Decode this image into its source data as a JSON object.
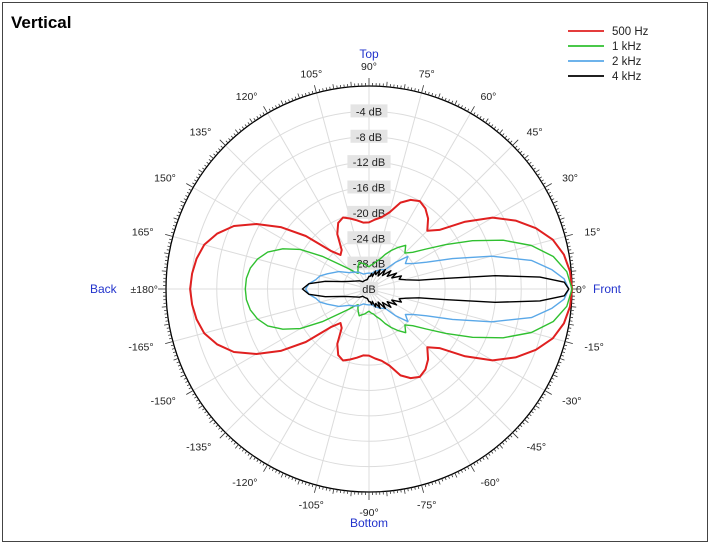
{
  "chart_data": {
    "type": "polar",
    "title": "Vertical",
    "r_unit": "dB",
    "r_range": [
      -32,
      0
    ],
    "r_labels": [
      "-4 dB",
      "-8 dB",
      "-12 dB",
      "-16 dB",
      "-20 dB",
      "-24 dB",
      "-28 dB",
      "dB"
    ],
    "direction_labels": {
      "top": "Top",
      "bottom": "Bottom",
      "back": "Back",
      "front": "Front"
    },
    "angle_labels": [
      {
        "deg": 90,
        "text": "90°"
      },
      {
        "deg": 75,
        "text": "75°"
      },
      {
        "deg": 60,
        "text": "60°"
      },
      {
        "deg": 45,
        "text": "45°"
      },
      {
        "deg": 30,
        "text": "30°"
      },
      {
        "deg": 15,
        "text": "15°"
      },
      {
        "deg": 0,
        "text": "0°"
      },
      {
        "deg": -15,
        "text": "-15°"
      },
      {
        "deg": -30,
        "text": "-30°"
      },
      {
        "deg": -45,
        "text": "-45°"
      },
      {
        "deg": -60,
        "text": "-60°"
      },
      {
        "deg": -75,
        "text": "-75°"
      },
      {
        "deg": -90,
        "text": "-90°"
      },
      {
        "deg": -105,
        "text": "-105°"
      },
      {
        "deg": -120,
        "text": "-120°"
      },
      {
        "deg": -135,
        "text": "-135°"
      },
      {
        "deg": -150,
        "text": "-150°"
      },
      {
        "deg": -165,
        "text": "-165°"
      },
      {
        "deg": 180,
        "text": "±180°"
      },
      {
        "deg": 165,
        "text": "165°"
      },
      {
        "deg": 150,
        "text": "150°"
      },
      {
        "deg": 135,
        "text": "135°"
      },
      {
        "deg": 120,
        "text": "120°"
      },
      {
        "deg": 105,
        "text": "105°"
      }
    ],
    "legend_position": "top-right",
    "grid": true,
    "series": [
      {
        "name": "500 Hz",
        "color": "#e02020",
        "angles": [
          0,
          5,
          10,
          15,
          20,
          25,
          30,
          35,
          40,
          45,
          50,
          55,
          60,
          65,
          70,
          75,
          80,
          85,
          90,
          95,
          100,
          105,
          110,
          115,
          120,
          125,
          130,
          135,
          140,
          145,
          150,
          155,
          160,
          165,
          170,
          175,
          180
        ],
        "values": [
          0,
          -0.2,
          -0.8,
          -2,
          -4,
          -6.5,
          -9.5,
          -13.5,
          -17.5,
          -19,
          -17.5,
          -16.5,
          -16,
          -16.5,
          -17.5,
          -19.5,
          -20.5,
          -21,
          -21.5,
          -21.5,
          -21,
          -20.5,
          -20,
          -20.5,
          -22,
          -24.5,
          -25,
          -23.5,
          -19,
          -15,
          -11.5,
          -8.5,
          -6.5,
          -5.1,
          -4.4,
          -4.0,
          -3.8
        ]
      },
      {
        "name": "1 kHz",
        "color": "#30c030",
        "angles": [
          0,
          5,
          10,
          15,
          20,
          25,
          30,
          35,
          40,
          45,
          50,
          55,
          60,
          65,
          70,
          75,
          80,
          85,
          90,
          95,
          100,
          105,
          110,
          115,
          120,
          125,
          130,
          135,
          140,
          145,
          150,
          155,
          160,
          165,
          170,
          175,
          180
        ],
        "values": [
          0,
          -0.7,
          -2.5,
          -5.5,
          -9.5,
          -14,
          -18,
          -21,
          -23,
          -24,
          -23,
          -24,
          -25,
          -26,
          -27,
          -27.5,
          -28,
          -28.2,
          -28.5,
          -28.3,
          -28,
          -27.8,
          -27.5,
          -28,
          -28.5,
          -29,
          -28.5,
          -27.5,
          -26,
          -23,
          -19.5,
          -17,
          -15,
          -13.8,
          -13,
          -12.6,
          -12.5
        ]
      },
      {
        "name": "2 kHz",
        "color": "#5aa8e8",
        "angles": [
          0,
          3,
          6,
          10,
          15,
          20,
          25,
          30,
          35,
          40,
          45,
          50,
          60,
          70,
          80,
          90,
          100,
          110,
          120,
          130,
          140,
          150,
          160,
          165,
          170,
          175,
          180
        ],
        "values": [
          -0.5,
          -1.2,
          -3,
          -6,
          -12,
          -18,
          -22,
          -24,
          -25,
          -24,
          -26,
          -28,
          -28.5,
          -29,
          -29.5,
          -29.5,
          -29.5,
          -29.5,
          -29,
          -28.5,
          -28,
          -26.5,
          -25,
          -24,
          -23.5,
          -22.5,
          -22
        ]
      },
      {
        "name": "4 kHz",
        "color": "#000000",
        "angles": [
          0,
          2,
          4,
          6,
          8,
          10,
          14,
          18,
          22,
          26,
          30,
          35,
          40,
          45,
          50,
          55,
          60,
          65,
          70,
          75,
          80,
          85,
          90,
          100,
          110,
          120,
          130,
          140,
          150,
          160,
          165,
          170,
          175,
          180
        ],
        "values": [
          -0.5,
          -1.2,
          -5,
          -12,
          -20,
          -24,
          -26,
          -27,
          -26.5,
          -28,
          -27,
          -28.5,
          -27.5,
          -29,
          -28,
          -29.5,
          -28.5,
          -29.5,
          -29,
          -30,
          -29.5,
          -30,
          -30,
          -30.5,
          -30.5,
          -30.5,
          -30.5,
          -30,
          -29.5,
          -28.5,
          -27.5,
          -25,
          -22.5,
          -21.5
        ]
      }
    ]
  }
}
